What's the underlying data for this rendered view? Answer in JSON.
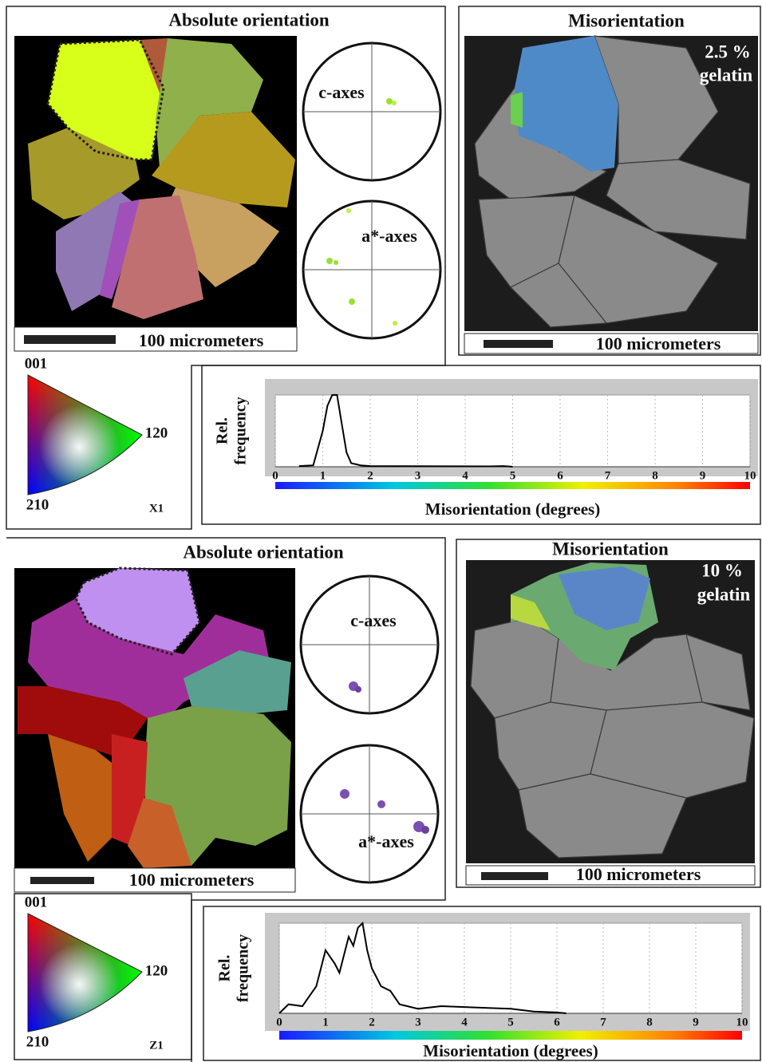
{
  "panels": [
    {
      "absolute_title": "Absolute orientation",
      "c_axes": "c-axes",
      "a_axes": "a*-axes",
      "scale_bar": "100 micrometers",
      "misorientation_title": "Misorientation",
      "concentration": "2.5 %",
      "gelatin": "gelatin",
      "ipf_001": "001",
      "ipf_120": "120",
      "ipf_210": "210",
      "ipf_axis": "X1"
    },
    {
      "absolute_title": "Absolute orientation",
      "c_axes": "c-axes",
      "a_axes": "a*-axes",
      "scale_bar": "100 micrometers",
      "misorientation_title": "Misorientation",
      "concentration": "10 %",
      "gelatin": "gelatin",
      "ipf_001": "001",
      "ipf_120": "120",
      "ipf_210": "210",
      "ipf_axis": "Z1"
    }
  ],
  "chart_data": [
    {
      "type": "line",
      "xlabel": "Misorientation (degrees)",
      "ylabel": [
        "Rel.",
        "frequency"
      ],
      "x": [
        0.5,
        0.8,
        1.0,
        1.1,
        1.2,
        1.3,
        1.4,
        1.5,
        1.6,
        1.8,
        2.0,
        4.5,
        4.8,
        5.0
      ],
      "series": [
        {
          "color": "#000000",
          "values": [
            0.01,
            0.02,
            0.5,
            0.85,
            1.0,
            1.0,
            0.6,
            0.2,
            0.05,
            0.02,
            0.01,
            0.005,
            0.01,
            0.0
          ]
        }
      ],
      "xlim": [
        0,
        10
      ],
      "ylim": [
        0,
        1
      ],
      "xticks": [
        0,
        1,
        2,
        3,
        4,
        5,
        6,
        7,
        8,
        9,
        10
      ],
      "grid": true
    },
    {
      "type": "line",
      "xlabel": "Misorientation (degrees)",
      "ylabel": [
        "Rel.",
        "frequency"
      ],
      "x": [
        0,
        0.2,
        0.5,
        0.8,
        1.0,
        1.2,
        1.3,
        1.5,
        1.6,
        1.7,
        1.8,
        1.9,
        2.0,
        2.2,
        2.4,
        2.6,
        3.0,
        3.5,
        4.0,
        4.5,
        5.0,
        5.5,
        6.0,
        6.2
      ],
      "series": [
        {
          "color": "#000000",
          "values": [
            0.0,
            0.1,
            0.08,
            0.3,
            0.7,
            0.55,
            0.45,
            0.85,
            0.75,
            0.95,
            1.0,
            0.7,
            0.5,
            0.3,
            0.25,
            0.1,
            0.05,
            0.08,
            0.07,
            0.06,
            0.05,
            0.02,
            0.01,
            0.0
          ]
        }
      ],
      "xlim": [
        0,
        10
      ],
      "ylim": [
        0,
        1
      ],
      "xticks": [
        0,
        1,
        2,
        3,
        4,
        5,
        6,
        7,
        8,
        9,
        10
      ],
      "grid": true
    }
  ]
}
